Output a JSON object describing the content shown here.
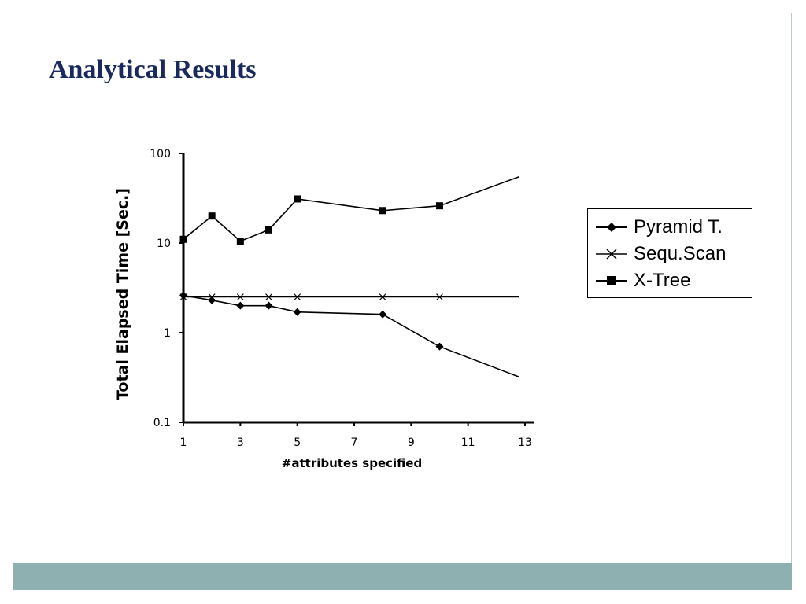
{
  "slide": {
    "title": "Analytical Results",
    "footer_color": "#8fb0b0",
    "title_color": "#1a2a5e"
  },
  "chart_data": {
    "type": "line",
    "xlabel": "#attributes specified",
    "ylabel": "Total Elapsed Time [Sec.]",
    "xlim": [
      1,
      13
    ],
    "ylim": [
      0.1,
      100
    ],
    "yscale": "log",
    "x_ticks": [
      1,
      3,
      5,
      7,
      9,
      11,
      13
    ],
    "y_ticks": [
      0.1,
      1,
      10,
      100
    ],
    "y_tick_labels": [
      "0.1",
      "1",
      "10",
      "100"
    ],
    "grid": false,
    "legend_position": "right",
    "series": [
      {
        "name": "Pyramid T.",
        "marker": "diamond",
        "x": [
          1,
          2,
          3,
          4,
          5,
          8,
          10,
          12.8
        ],
        "y": [
          2.6,
          2.3,
          2.0,
          2.0,
          1.7,
          1.6,
          0.7,
          0.32
        ],
        "markers_at": [
          0,
          1,
          2,
          3,
          4,
          5,
          6
        ]
      },
      {
        "name": "Sequ.Scan",
        "marker": "x",
        "x": [
          1,
          2,
          3,
          4,
          5,
          8,
          10,
          12.8
        ],
        "y": [
          2.5,
          2.5,
          2.5,
          2.5,
          2.5,
          2.5,
          2.5,
          2.5
        ],
        "markers_at": [
          0,
          1,
          2,
          3,
          4,
          5,
          6
        ]
      },
      {
        "name": "X-Tree",
        "marker": "square",
        "x": [
          1,
          2,
          3,
          4,
          5,
          8,
          10,
          12.8
        ],
        "y": [
          11,
          20,
          10.5,
          14,
          31,
          23,
          26,
          55
        ],
        "markers_at": [
          0,
          1,
          2,
          3,
          4,
          5,
          6
        ]
      }
    ]
  }
}
